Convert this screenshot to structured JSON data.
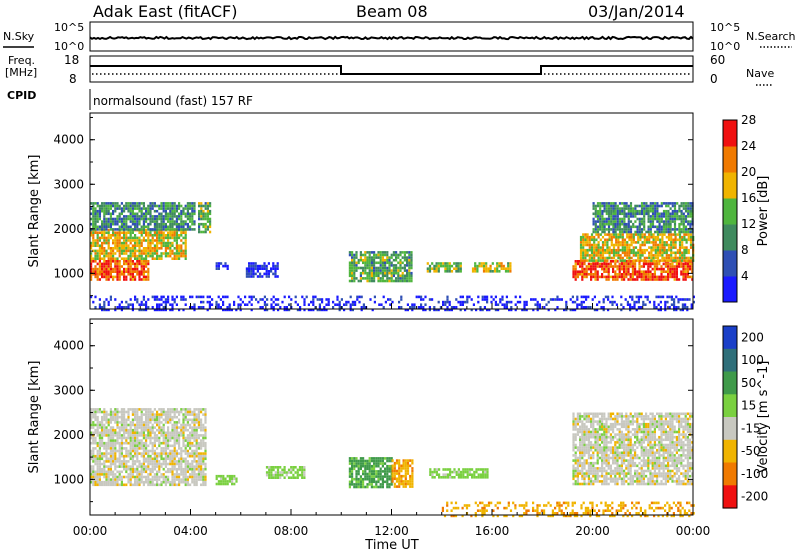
{
  "header": {
    "station": "Adak East (fitACF)",
    "beam": "Beam 08",
    "date": "03/Jan/2014"
  },
  "strip_panels": {
    "nsky_label": "N.Sky",
    "nsearch_label": "N.Search",
    "log_top": "10^5",
    "log_bottom": "10^0",
    "freq_label_line1": "Freq.",
    "freq_label_line2": "[MHz]",
    "freq_top": "18",
    "freq_bottom": "8",
    "nave_label": "Nave",
    "nave_top": "60",
    "nave_bottom": "0",
    "cpid_label": "CPID",
    "cpid_text": "normalsound (fast) 157 RF"
  },
  "chart_data": [
    {
      "type": "heatmap",
      "title": "",
      "xlabel": "",
      "ylabel": "Slant Range [km]",
      "xlim": [
        "00:00",
        "24:00"
      ],
      "ylim": [
        200,
        4600
      ],
      "y_ticks": [
        1000,
        2000,
        3000,
        4000
      ],
      "colorbar": {
        "label": "Power [dB]",
        "ticks": [
          "4",
          "8",
          "12",
          "16",
          "20",
          "24",
          "28"
        ],
        "colors": [
          "#1a1aff",
          "#2f4fb4",
          "#3f8a5e",
          "#4fb53e",
          "#f0b400",
          "#f07a00",
          "#f01010"
        ]
      },
      "regions": [
        {
          "t": [
            0.0,
            2.3
          ],
          "range": [
            850,
            1300
          ],
          "power": 28
        },
        {
          "t": [
            0.0,
            3.8
          ],
          "range": [
            1300,
            2000
          ],
          "power": 22
        },
        {
          "t": [
            0.0,
            4.2
          ],
          "range": [
            2000,
            2600
          ],
          "power": 14
        },
        {
          "t": [
            4.3,
            4.8
          ],
          "range": [
            1900,
            2600
          ],
          "power": 16
        },
        {
          "t": [
            5.0,
            5.5
          ],
          "range": [
            1100,
            1250
          ],
          "power": 6
        },
        {
          "t": [
            6.2,
            7.5
          ],
          "range": [
            900,
            1250
          ],
          "power": 7
        },
        {
          "t": [
            10.3,
            12.8
          ],
          "range": [
            850,
            1500
          ],
          "power": 16
        },
        {
          "t": [
            13.4,
            14.8
          ],
          "range": [
            1050,
            1250
          ],
          "power": 18
        },
        {
          "t": [
            15.2,
            16.7
          ],
          "range": [
            1050,
            1250
          ],
          "power": 20
        },
        {
          "t": [
            19.2,
            24.0
          ],
          "range": [
            850,
            1300
          ],
          "power": 28
        },
        {
          "t": [
            19.5,
            24.0
          ],
          "range": [
            1300,
            1900
          ],
          "power": 22
        },
        {
          "t": [
            20.0,
            24.0
          ],
          "range": [
            1900,
            2600
          ],
          "power": 14
        },
        {
          "t": [
            0.0,
            24.0
          ],
          "range": [
            200,
            500
          ],
          "power": 6
        }
      ]
    },
    {
      "type": "heatmap",
      "title": "",
      "xlabel": "Time UT",
      "ylabel": "Slant Range [km]",
      "xlim": [
        "00:00",
        "24:00"
      ],
      "ylim": [
        200,
        4600
      ],
      "x_ticks": [
        "00:00",
        "04:00",
        "08:00",
        "12:00",
        "16:00",
        "20:00",
        "00:00"
      ],
      "y_ticks": [
        1000,
        2000,
        3000,
        4000
      ],
      "colorbar": {
        "label": "Velocity [m s^-1]",
        "ticks": [
          "200",
          "100",
          "50",
          "15",
          "-15",
          "-50",
          "-100",
          "-200"
        ],
        "colors": [
          "#1a3fc8",
          "#2f6f7a",
          "#3f9a4a",
          "#7ad040",
          "#c8c8c0",
          "#f0b400",
          "#f07a00",
          "#f01010"
        ]
      },
      "regions": [
        {
          "t": [
            0.0,
            4.6
          ],
          "range": [
            900,
            2600
          ],
          "velocity": 0
        },
        {
          "t": [
            5.0,
            5.8
          ],
          "range": [
            900,
            1100
          ],
          "velocity": 30
        },
        {
          "t": [
            7.0,
            8.5
          ],
          "range": [
            1050,
            1300
          ],
          "velocity": 30
        },
        {
          "t": [
            10.3,
            12.0
          ],
          "range": [
            850,
            1500
          ],
          "velocity": 60
        },
        {
          "t": [
            12.0,
            12.8
          ],
          "range": [
            850,
            1450
          ],
          "velocity": -40
        },
        {
          "t": [
            13.5,
            15.8
          ],
          "range": [
            1050,
            1250
          ],
          "velocity": 30
        },
        {
          "t": [
            19.2,
            24.0
          ],
          "range": [
            900,
            2500
          ],
          "velocity": 0
        },
        {
          "t": [
            14.0,
            24.0
          ],
          "range": [
            200,
            500
          ],
          "velocity": -40
        }
      ]
    }
  ]
}
